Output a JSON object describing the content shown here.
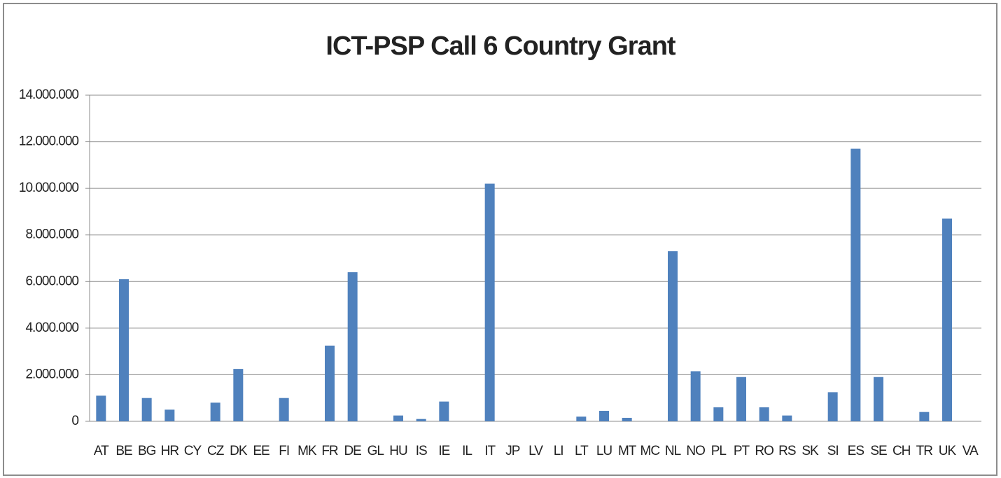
{
  "chart_data": {
    "type": "bar",
    "title": "ICT-PSP Call 6 Country Grant",
    "categories": [
      "AT",
      "BE",
      "BG",
      "HR",
      "CY",
      "CZ",
      "DK",
      "EE",
      "FI",
      "MK",
      "FR",
      "DE",
      "GL",
      "HU",
      "IS",
      "IE",
      "IL",
      "IT",
      "JP",
      "LV",
      "LI",
      "LT",
      "LU",
      "MT",
      "MC",
      "NL",
      "NO",
      "PL",
      "PT",
      "RO",
      "RS",
      "SK",
      "SI",
      "ES",
      "SE",
      "CH",
      "TR",
      "UK",
      "VA"
    ],
    "values": [
      1100000,
      6100000,
      1000000,
      500000,
      0,
      800000,
      2250000,
      0,
      1000000,
      0,
      3250000,
      6400000,
      0,
      250000,
      100000,
      850000,
      0,
      10200000,
      0,
      0,
      0,
      200000,
      450000,
      150000,
      0,
      7300000,
      2150000,
      600000,
      1900000,
      600000,
      250000,
      0,
      1250000,
      11700000,
      1900000,
      0,
      400000,
      8700000,
      0
    ],
    "color": "#4f81bd",
    "ylim": [
      0,
      14000000
    ],
    "yticks": [
      0,
      {
        "value": 2000000,
        "label": "2.000.000"
      },
      {
        "value": 4000000,
        "label": "4.000.000"
      },
      {
        "value": 6000000,
        "label": "6.000.000"
      },
      {
        "value": 8000000,
        "label": "8.000.000"
      },
      {
        "value": 10000000,
        "label": "10.000.000"
      },
      {
        "value": 12000000,
        "label": "12.000.000"
      },
      {
        "value": 14000000,
        "label": "14.000.000"
      }
    ],
    "grid": true
  }
}
